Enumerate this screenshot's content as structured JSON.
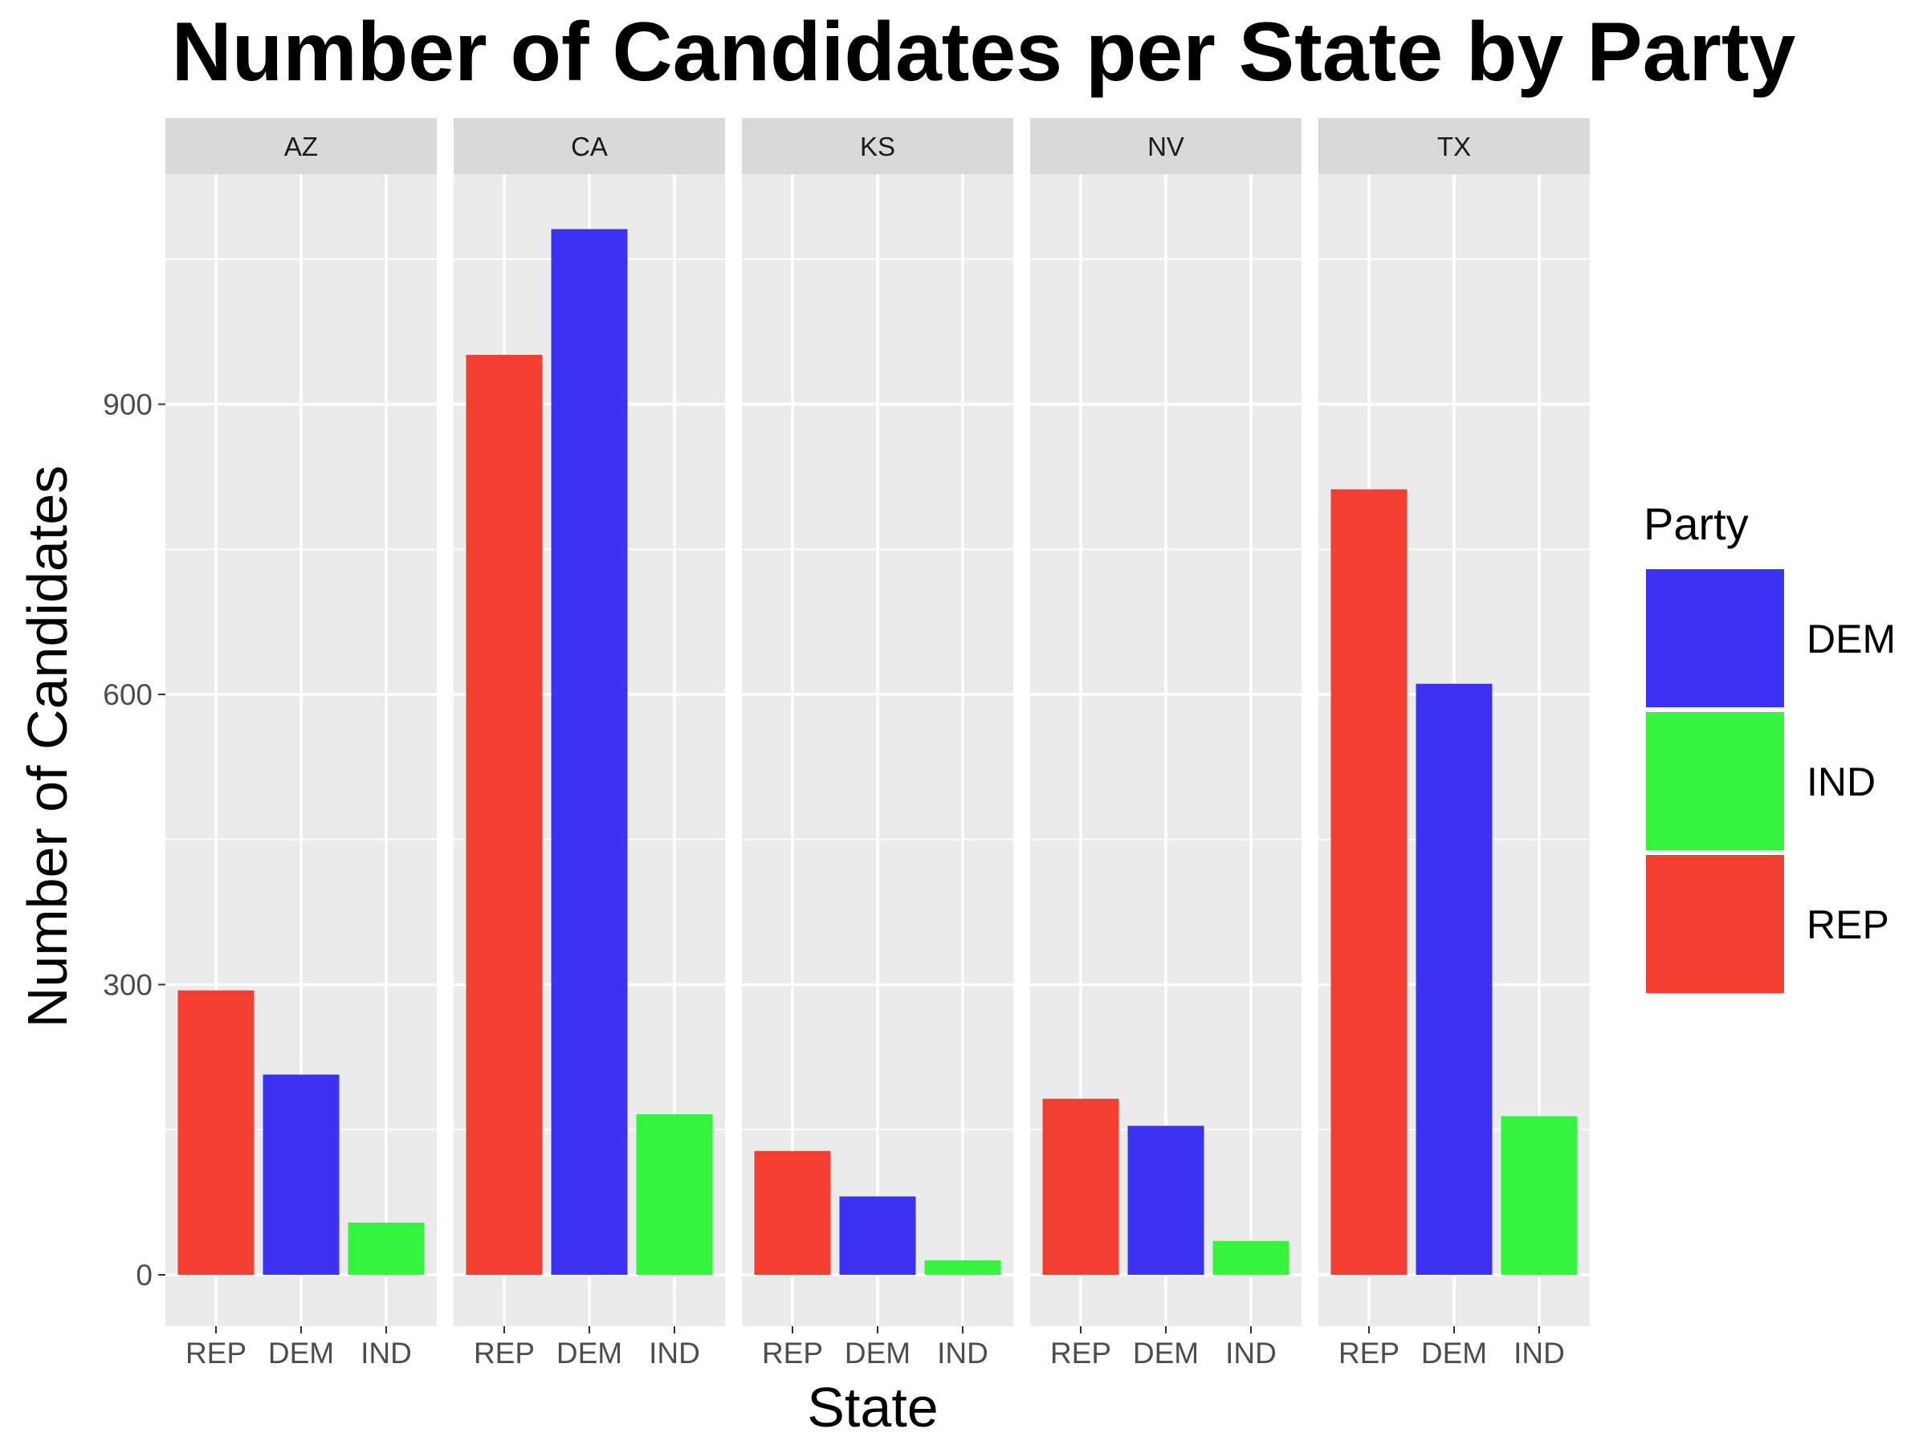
{
  "chart_data": {
    "type": "bar",
    "title": "Number of Candidates per State by Party",
    "xlabel": "State",
    "ylabel": "Number of Candidates",
    "facets": [
      "AZ",
      "CA",
      "KS",
      "NV",
      "TX"
    ],
    "categories": [
      "REP",
      "DEM",
      "IND"
    ],
    "yticks": [
      0,
      300,
      600,
      900
    ],
    "ylim": [
      -52,
      1135
    ],
    "grid": true,
    "legend": {
      "title": "Party",
      "placement": "right",
      "entries": [
        {
          "label": "DEM",
          "color": "#3c32f3"
        },
        {
          "label": "IND",
          "color": "#35f43f"
        },
        {
          "label": "REP",
          "color": "#f33e32"
        }
      ]
    },
    "colors": {
      "REP": "#f33e32",
      "DEM": "#3c32f3",
      "IND": "#35f43f"
    },
    "series": [
      {
        "facet": "AZ",
        "values": {
          "REP": 294,
          "DEM": 207,
          "IND": 54
        }
      },
      {
        "facet": "CA",
        "values": {
          "REP": 951,
          "DEM": 1081,
          "IND": 166
        }
      },
      {
        "facet": "KS",
        "values": {
          "REP": 128,
          "DEM": 81,
          "IND": 15
        }
      },
      {
        "facet": "NV",
        "values": {
          "REP": 182,
          "DEM": 154,
          "IND": 35
        }
      },
      {
        "facet": "TX",
        "values": {
          "REP": 812,
          "DEM": 611,
          "IND": 164
        }
      }
    ]
  }
}
